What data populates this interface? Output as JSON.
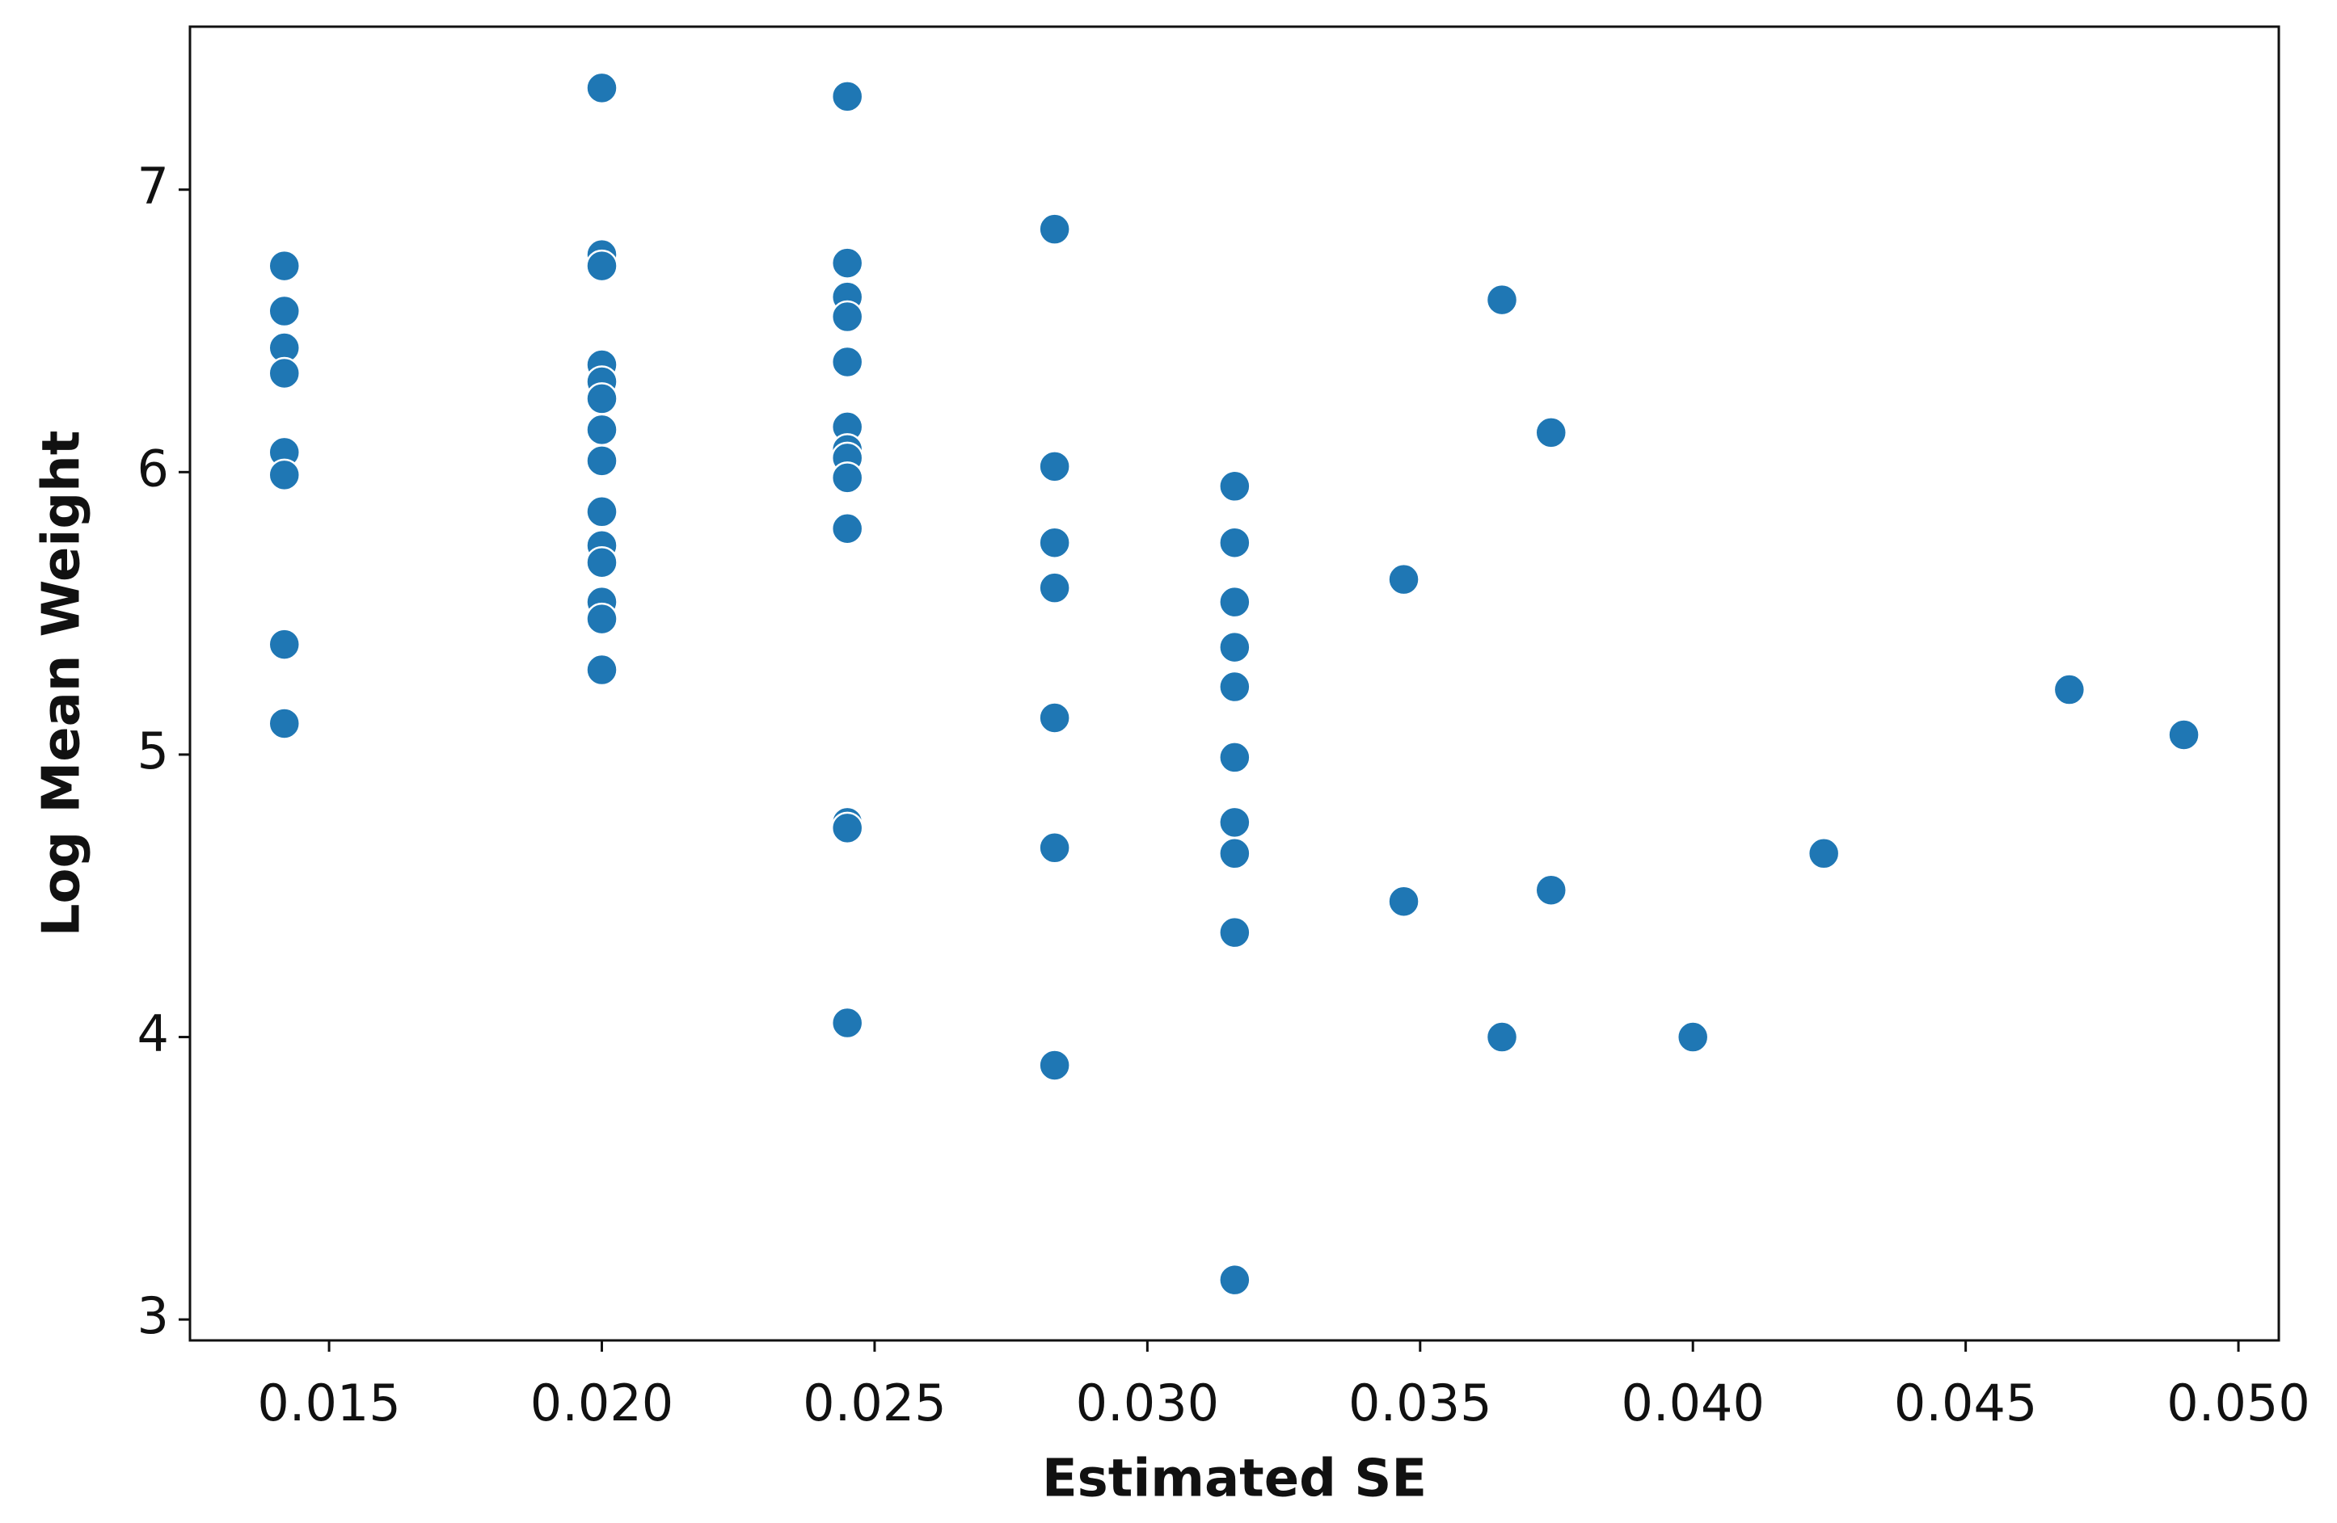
{
  "chart_data": {
    "type": "scatter",
    "xlabel": "Estimated SE",
    "ylabel": "Log Mean Weight",
    "series": [
      {
        "color": "#1f77b4",
        "x": [
          0.01418,
          0.01418,
          0.01418,
          0.01418,
          0.01418,
          0.01418,
          0.01418,
          0.01418,
          0.02,
          0.02,
          0.02,
          0.02,
          0.02,
          0.02,
          0.02,
          0.02,
          0.02,
          0.02,
          0.02,
          0.02,
          0.02,
          0.02,
          0.0245,
          0.0245,
          0.0245,
          0.0245,
          0.0245,
          0.0245,
          0.0245,
          0.0245,
          0.0245,
          0.0245,
          0.0245,
          0.0245,
          0.0245,
          0.0283,
          0.0283,
          0.0283,
          0.0283,
          0.0283,
          0.0283,
          0.0283,
          0.0316,
          0.0316,
          0.0316,
          0.0316,
          0.0316,
          0.0316,
          0.0316,
          0.0316,
          0.0316,
          0.0316,
          0.0347,
          0.0347,
          0.0365,
          0.0365,
          0.0374,
          0.0374,
          0.04,
          0.0424,
          0.0469,
          0.049
        ],
        "values": [
          6.73,
          6.57,
          6.44,
          6.35,
          6.07,
          5.99,
          5.39,
          5.11,
          7.36,
          6.77,
          6.73,
          6.38,
          6.32,
          6.26,
          6.15,
          6.04,
          5.86,
          5.74,
          5.68,
          5.54,
          5.48,
          5.3,
          7.33,
          6.74,
          6.62,
          6.55,
          6.39,
          6.16,
          6.08,
          6.05,
          5.98,
          5.8,
          4.76,
          4.74,
          4.05,
          6.86,
          6.02,
          5.75,
          5.59,
          5.13,
          4.67,
          3.9,
          5.95,
          5.75,
          5.54,
          5.38,
          5.24,
          4.99,
          4.76,
          4.65,
          4.37,
          3.14,
          5.62,
          4.48,
          6.61,
          4.0,
          6.14,
          4.52,
          4.0,
          4.65,
          5.23,
          5.07
        ]
      }
    ],
    "xlim": [
      0.01245,
      0.05074
    ],
    "xticks": [
      0.015,
      {
        "value": 0.02,
        "label": "0.020"
      },
      0.025,
      {
        "value": 0.03,
        "label": "0.030"
      },
      0.035,
      {
        "value": 0.04,
        "label": "0.040"
      },
      0.045,
      {
        "value": 0.05,
        "label": "0.050"
      }
    ],
    "ylim": [
      2.926,
      7.577
    ],
    "yticks": [
      3,
      4,
      5,
      6,
      7
    ],
    "grid": false
  }
}
